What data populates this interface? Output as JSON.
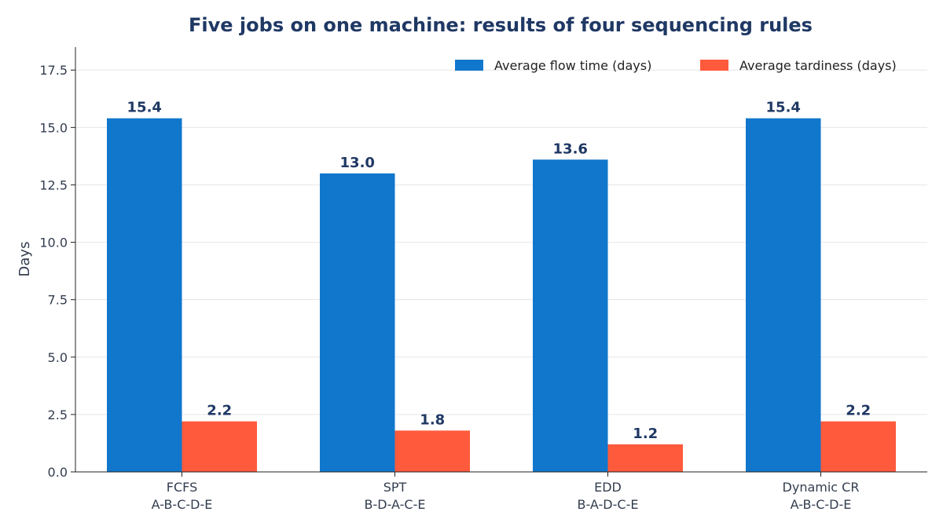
{
  "chart_data": {
    "type": "bar",
    "title": "Five jobs on one machine: results of four sequencing rules",
    "xlabel": "",
    "ylabel": "Days",
    "categories": [
      {
        "rule": "FCFS",
        "sequence": "A-B-C-D-E"
      },
      {
        "rule": "SPT",
        "sequence": "B-D-A-C-E"
      },
      {
        "rule": "EDD",
        "sequence": "B-A-D-C-E"
      },
      {
        "rule": "Dynamic CR",
        "sequence": "A-B-C-D-E"
      }
    ],
    "series": [
      {
        "name": "Average flow time (days)",
        "color": "#1177cc",
        "values": [
          15.4,
          13.0,
          13.6,
          15.4
        ],
        "labels": [
          "15.4",
          "13.0",
          "13.6",
          "15.4"
        ]
      },
      {
        "name": "Average tardiness (days)",
        "color": "#ff5a3c",
        "values": [
          2.2,
          1.8,
          1.2,
          2.2
        ],
        "labels": [
          "2.2",
          "1.8",
          "1.2",
          "2.2"
        ]
      }
    ],
    "ylim": [
      0,
      18.5
    ],
    "yticks": [
      0.0,
      2.5,
      5.0,
      7.5,
      10.0,
      12.5,
      15.0,
      17.5
    ],
    "ytick_labels": [
      "0.0",
      "2.5",
      "5.0",
      "7.5",
      "10.0",
      "12.5",
      "15.0",
      "17.5"
    ],
    "grid": true,
    "legend_position": "top-right",
    "colors": {
      "title": "#1f3864",
      "bar_label": "#1f3864",
      "tick_text": "#333d4f",
      "axis": "#222222",
      "grid": "#e6e6e6"
    }
  }
}
